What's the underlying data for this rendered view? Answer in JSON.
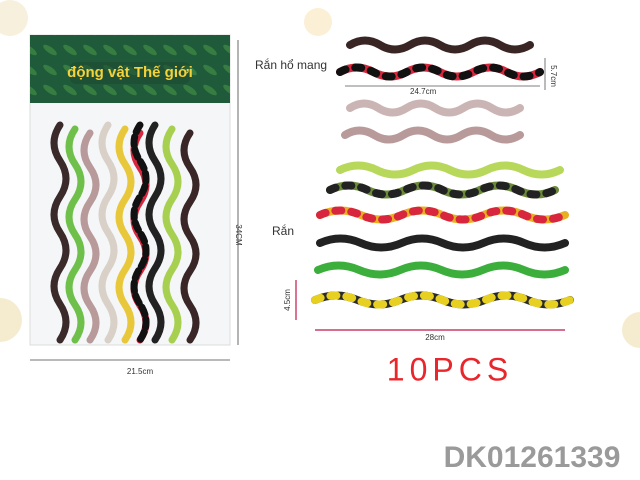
{
  "package": {
    "title": "động vật Thế giới",
    "height_label": "34CM",
    "width_label": "21.5cm"
  },
  "cobras": {
    "label": "Rắn hổ mang",
    "length_label": "24.7cm",
    "width_label": "5.7cm"
  },
  "snakes": {
    "label": "Rắn",
    "width_label": "4.5cm",
    "length_label": "28cm"
  },
  "count": "10PCS",
  "sku": "DK01261339"
}
